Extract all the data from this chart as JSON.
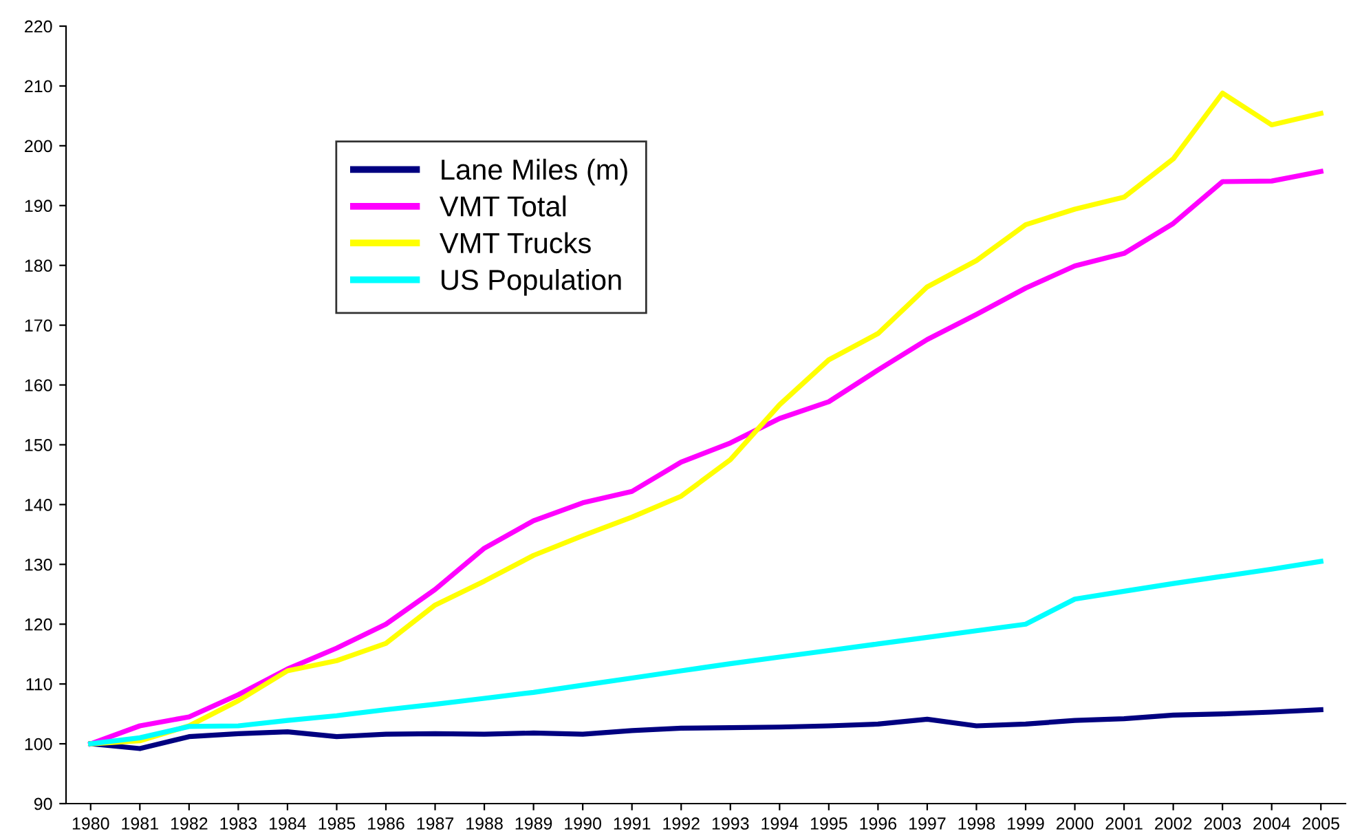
{
  "chart_data": {
    "type": "line",
    "categories": [
      "1980",
      "1981",
      "1982",
      "1983",
      "1984",
      "1985",
      "1986",
      "1987",
      "1988",
      "1989",
      "1990",
      "1991",
      "1992",
      "1993",
      "1994",
      "1995",
      "1996",
      "1997",
      "1998",
      "1999",
      "2000",
      "2001",
      "2002",
      "2003",
      "2004",
      "2005"
    ],
    "series": [
      {
        "name": "Lane Miles (m)",
        "color": "#000080",
        "values": [
          100,
          99.2,
          101.2,
          101.7,
          102,
          101.2,
          101.6,
          101.7,
          101.6,
          101.8,
          101.6,
          102.2,
          102.6,
          102.7,
          102.8,
          103,
          103.3,
          104.1,
          103,
          103.3,
          103.9,
          104.2,
          104.8,
          105,
          105.3,
          105.7
        ]
      },
      {
        "name": "VMT Total",
        "color": "#ff00ff",
        "values": [
          100,
          103,
          104.5,
          108.2,
          112.5,
          116,
          120,
          125.8,
          132.7,
          137.3,
          140.3,
          142.2,
          147.1,
          150.3,
          154.4,
          157.2,
          162.5,
          167.6,
          171.8,
          176.2,
          179.9,
          182,
          187,
          194,
          194.1,
          195.7
        ]
      },
      {
        "name": "VMT Trucks",
        "color": "#ffff00",
        "values": [
          100,
          100.5,
          103,
          107.2,
          112.2,
          113.9,
          116.8,
          123.2,
          127.2,
          131.5,
          134.8,
          137.9,
          141.4,
          147.5,
          156.7,
          164.2,
          168.6,
          176.4,
          180.8,
          186.8,
          189.4,
          191.4,
          197.8,
          208.8,
          203.5,
          205.4
        ]
      },
      {
        "name": "US Population",
        "color": "#00ffff",
        "values": [
          100,
          101,
          102.9,
          103,
          103.9,
          104.7,
          105.7,
          106.6,
          107.6,
          108.6,
          109.8,
          111,
          112.2,
          113.4,
          114.5,
          115.6,
          116.7,
          117.8,
          118.9,
          120,
          124.2,
          125.5,
          126.8,
          128,
          129.2,
          130.5
        ]
      }
    ],
    "ylim": [
      90,
      220
    ],
    "yticks": [
      90,
      100,
      110,
      120,
      130,
      140,
      150,
      160,
      170,
      180,
      190,
      200,
      210,
      220
    ],
    "grid": false,
    "legend": "top left",
    "marker": "none",
    "line_style": "solid"
  }
}
